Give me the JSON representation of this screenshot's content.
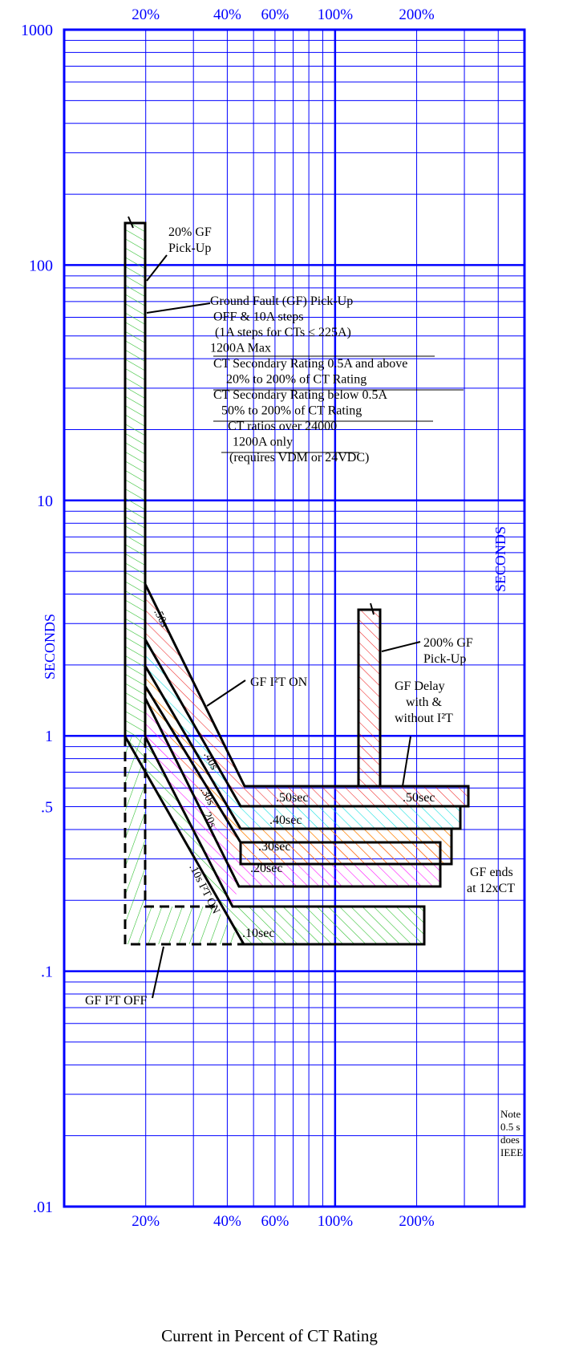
{
  "chart_data": {
    "type": "area",
    "title": "",
    "xlabel": "Current in Percent of CT Rating",
    "ylabel": "SECONDS",
    "ylabel_right": "SECONDS",
    "x_scale": "log",
    "y_scale": "log",
    "xlim": [
      10,
      500
    ],
    "ylim": [
      0.01,
      1000
    ],
    "grid": true,
    "x_ticks": [
      {
        "value": 20,
        "label": "20%"
      },
      {
        "value": 40,
        "label": "40%"
      },
      {
        "value": 60,
        "label": "60%"
      },
      {
        "value": 100,
        "label": "100%"
      },
      {
        "value": 200,
        "label": "200%"
      }
    ],
    "y_ticks": [
      {
        "value": 1000,
        "label": "1000"
      },
      {
        "value": 100,
        "label": "100"
      },
      {
        "value": 10,
        "label": "10"
      },
      {
        "value": 1,
        "label": "1"
      },
      {
        "value": 0.5,
        "label": ".5"
      },
      {
        "value": 0.1,
        "label": ".1"
      },
      {
        "value": 0.01,
        "label": ".01"
      }
    ],
    "colors": {
      "grid": "#0000ff",
      "tick_labels": "#0000ff",
      "pickup_20": "#22bb22",
      "delay_10": "#22bb22",
      "delay_20": "#ff00ff",
      "delay_30": "#ff8000",
      "delay_40": "#00dddd",
      "delay_50": "#ee2222"
    },
    "series": [
      {
        "label": ".10sec",
        "color_key": "delay_10",
        "polygon": [
          [
            17.5,
            0.91
          ],
          [
            21.5,
            0.91
          ],
          [
            53,
            0.155
          ],
          [
            330,
            0.155
          ],
          [
            330,
            0.087
          ],
          [
            60,
            0.087
          ]
        ]
      },
      {
        "label": ".20sec",
        "color_key": "delay_20",
        "polygon": [
          [
            21.5,
            1.49
          ],
          [
            21.5,
            0.91
          ],
          [
            58,
            0.245
          ],
          [
            370,
            0.245
          ],
          [
            370,
            0.18
          ],
          [
            55,
            0.18
          ]
        ]
      },
      {
        "label": ".30sec",
        "color_key": "delay_30",
        "polygon": [
          [
            21.5,
            1.96
          ],
          [
            21.5,
            1.49
          ],
          [
            58,
            0.31
          ],
          [
            420,
            0.31
          ],
          [
            420,
            0.245
          ],
          [
            58,
            0.245
          ]
        ]
      },
      {
        "label": ".40sec",
        "color_key": "delay_40",
        "polygon": [
          [
            21.5,
            3.35
          ],
          [
            21.5,
            1.96
          ],
          [
            56,
            0.41
          ],
          [
            425,
            0.41
          ],
          [
            425,
            0.31
          ],
          [
            58,
            0.31
          ]
        ]
      },
      {
        "label": ".50sec",
        "color_key": "delay_50",
        "polygon": [
          [
            21.5,
            4.23
          ],
          [
            21.5,
            3.35
          ],
          [
            56,
            0.53
          ],
          [
            440,
            0.53
          ],
          [
            440,
            0.41
          ],
          [
            56,
            0.41
          ]
        ]
      },
      {
        "label": "",
        "color_key": "delay_50",
        "polygon": [
          [
            176,
            4.1
          ],
          [
            205,
            4.1
          ],
          [
            205,
            0.55
          ],
          [
            176,
            0.55
          ]
        ]
      },
      {
        "label": "",
        "color_key": "pickup_20",
        "polygon": [
          [
            17.5,
            150
          ],
          [
            21.5,
            150
          ],
          [
            21.5,
            0.91
          ],
          [
            17.5,
            0.91
          ]
        ]
      }
    ],
    "i2t_off_outline": [
      [
        17.5,
        0.91
      ],
      [
        17.5,
        0.087
      ],
      [
        60,
        0.087
      ],
      [
        26,
        0.145
      ],
      [
        21.5,
        0.145
      ],
      [
        21.5,
        0.91
      ]
    ],
    "slope_labels": [
      ".50s",
      ".40s",
      ".30s",
      ".20s",
      ".10s I²T ON"
    ],
    "annotations": [
      {
        "lines": [
          "20% GF",
          "Pick-Up"
        ]
      },
      {
        "lines": [
          "Ground Fault (GF) Pick-Up",
          "OFF & 10A steps",
          "(1A steps for CTs ≤ 225A)",
          "1200A Max",
          "CT Secondary Rating 0.5A and above",
          "20% to 200% of CT Rating",
          "CT Secondary Rating below 0.5A",
          "50% to 200% of CT Rating",
          "CT ratios over 24000",
          "1200A only",
          "(requires VDM or 24VDC)"
        ]
      },
      {
        "lines": [
          "GF I²T ON"
        ]
      },
      {
        "lines": [
          "200% GF",
          "Pick-Up"
        ]
      },
      {
        "lines": [
          "GF Delay",
          "with &",
          "without I²T"
        ]
      },
      {
        "lines": [
          "GF ends",
          "at 12xCT"
        ]
      },
      {
        "lines": [
          "GF I²T OFF"
        ]
      },
      {
        "lines": [
          "Note",
          "0.5 s",
          "does",
          "IEEE"
        ]
      }
    ]
  }
}
